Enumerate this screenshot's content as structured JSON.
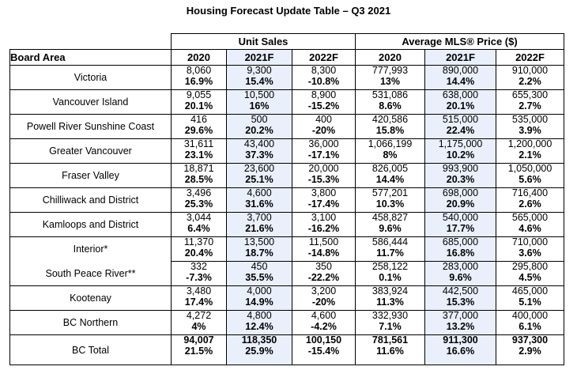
{
  "title": "Housing Forecast Update Table – Q3 2021",
  "group_headers": {
    "unit_sales": "Unit Sales",
    "avg_price": "Average MLS® Price ($)"
  },
  "columns": {
    "board_area": "Board Area",
    "us_2020": "2020",
    "us_2021": "2021F",
    "us_2022": "2022F",
    "ap_2020": "2020",
    "ap_2021": "2021F",
    "ap_2022": "2022F"
  },
  "rows": [
    {
      "area": "Victoria",
      "cells": [
        [
          "8,060",
          "16.9%"
        ],
        [
          "9,300",
          "15.4%"
        ],
        [
          "8,300",
          "-10.8%"
        ],
        [
          "777,993",
          "13%"
        ],
        [
          "890,000",
          "14.4%"
        ],
        [
          "910,000",
          "2.2%"
        ]
      ]
    },
    {
      "area": "Vancouver Island",
      "cells": [
        [
          "9,055",
          "20.1%"
        ],
        [
          "10,500",
          "16%"
        ],
        [
          "8,900",
          "-15.2%"
        ],
        [
          "531,086",
          "8.6%"
        ],
        [
          "638,000",
          "20.1%"
        ],
        [
          "655,300",
          "2.7%"
        ]
      ]
    },
    {
      "area": "Powell River Sunshine Coast",
      "cells": [
        [
          "416",
          "29.6%"
        ],
        [
          "500",
          "20.2%"
        ],
        [
          "400",
          "-20%"
        ],
        [
          "420,586",
          "15.8%"
        ],
        [
          "515,000",
          "22.4%"
        ],
        [
          "535,000",
          "3.9%"
        ]
      ]
    },
    {
      "area": "Greater Vancouver",
      "cells": [
        [
          "31,611",
          "23.1%"
        ],
        [
          "43,400",
          "37.3%"
        ],
        [
          "36,000",
          "-17.1%"
        ],
        [
          "1,066,199",
          "8%"
        ],
        [
          "1,175,000",
          "10.2%"
        ],
        [
          "1,200,000",
          "2.1%"
        ]
      ]
    },
    {
      "area": "Fraser Valley",
      "cells": [
        [
          "18,871",
          "28.5%"
        ],
        [
          "23,600",
          "25.1%"
        ],
        [
          "20,000",
          "-15.3%"
        ],
        [
          "826,005",
          "14.4%"
        ],
        [
          "993,900",
          "20.3%"
        ],
        [
          "1,050,000",
          "5.6%"
        ]
      ]
    },
    {
      "area": "Chilliwack and District",
      "cells": [
        [
          "3,496",
          "25.3%"
        ],
        [
          "4,600",
          "31.6%"
        ],
        [
          "3,800",
          "-17.4%"
        ],
        [
          "577,201",
          "10.3%"
        ],
        [
          "698,000",
          "20.9%"
        ],
        [
          "716,400",
          "2.6%"
        ]
      ]
    },
    {
      "area": "Kamloops and District",
      "cells": [
        [
          "3,044",
          "6.4%"
        ],
        [
          "3,700",
          "21.6%"
        ],
        [
          "3,100",
          "-16.2%"
        ],
        [
          "458,827",
          "9.6%"
        ],
        [
          "540,000",
          "17.7%"
        ],
        [
          "565,000",
          "4.6%"
        ]
      ]
    },
    {
      "area": "Interior*",
      "cells": [
        [
          "11,370",
          "20.4%"
        ],
        [
          "13,500",
          "18.7%"
        ],
        [
          "11,500",
          "-14.8%"
        ],
        [
          "586,444",
          "11.7%"
        ],
        [
          "685,000",
          "16.8%"
        ],
        [
          "710,000",
          "3.6%"
        ]
      ]
    },
    {
      "area": "South Peace River**",
      "cells": [
        [
          "332",
          "-7.3%"
        ],
        [
          "450",
          "35.5%"
        ],
        [
          "350",
          "-22.2%"
        ],
        [
          "258,122",
          "0.1%"
        ],
        [
          "283,000",
          "9.6%"
        ],
        [
          "295,800",
          "4.5%"
        ]
      ]
    },
    {
      "area": "Kootenay",
      "cells": [
        [
          "3,480",
          "17.4%"
        ],
        [
          "4,000",
          "14.9%"
        ],
        [
          "3,200",
          "-20%"
        ],
        [
          "383,924",
          "11.3%"
        ],
        [
          "442,500",
          "15.3%"
        ],
        [
          "465,000",
          "5.1%"
        ]
      ]
    },
    {
      "area": "BC Northern",
      "cells": [
        [
          "4,272",
          "4%"
        ],
        [
          "4,800",
          "12.4%"
        ],
        [
          "4,600",
          "-4.2%"
        ],
        [
          "332,930",
          "7.1%"
        ],
        [
          "377,000",
          "13.2%"
        ],
        [
          "400,000",
          "6.1%"
        ]
      ]
    },
    {
      "area": "BC Total",
      "cells": [
        [
          "94,007",
          "21.5%"
        ],
        [
          "118,350",
          "25.9%"
        ],
        [
          "100,150",
          "-15.4%"
        ],
        [
          "781,561",
          "11.6%"
        ],
        [
          "911,300",
          "16.6%"
        ],
        [
          "937,300",
          "2.9%"
        ]
      ]
    }
  ],
  "colors": {
    "forecast_shade": "#e9effb",
    "border": "#000000"
  }
}
